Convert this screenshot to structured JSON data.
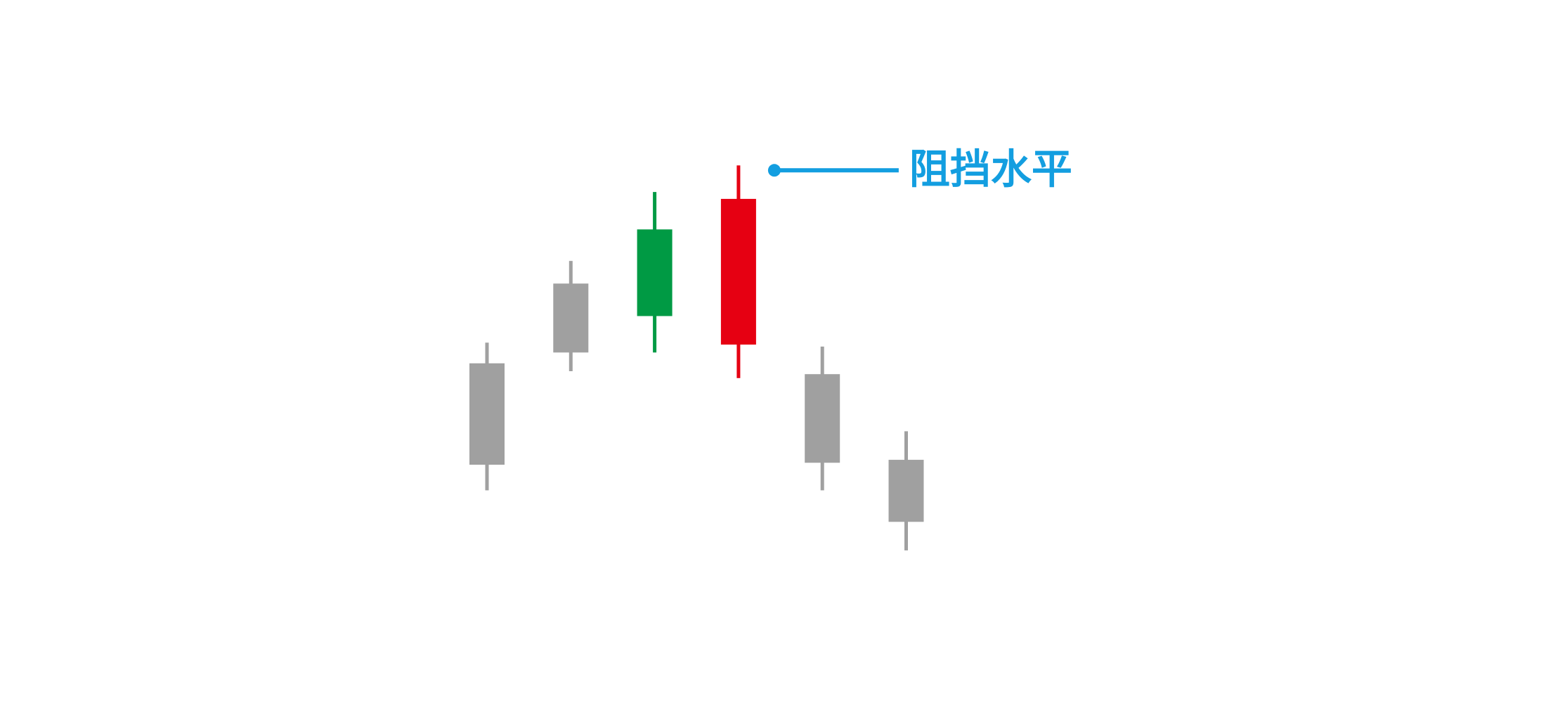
{
  "chart_data": {
    "type": "candlestick",
    "ylim": [
      0,
      714
    ],
    "open": [
      242,
      356,
      393,
      512,
      334,
      247
    ],
    "high": [
      366,
      449,
      519,
      546,
      362,
      276
    ],
    "low": [
      216,
      337,
      356,
      330,
      216,
      155
    ],
    "close": [
      345,
      426,
      481,
      364,
      244,
      184
    ],
    "colors": [
      "#a0a0a0",
      "#a0a0a0",
      "#009a44",
      "#e60012",
      "#a0a0a0",
      "#a0a0a0"
    ],
    "annotation": {
      "text": "阻挡水平",
      "value": 541,
      "color": "#139ee0"
    }
  }
}
